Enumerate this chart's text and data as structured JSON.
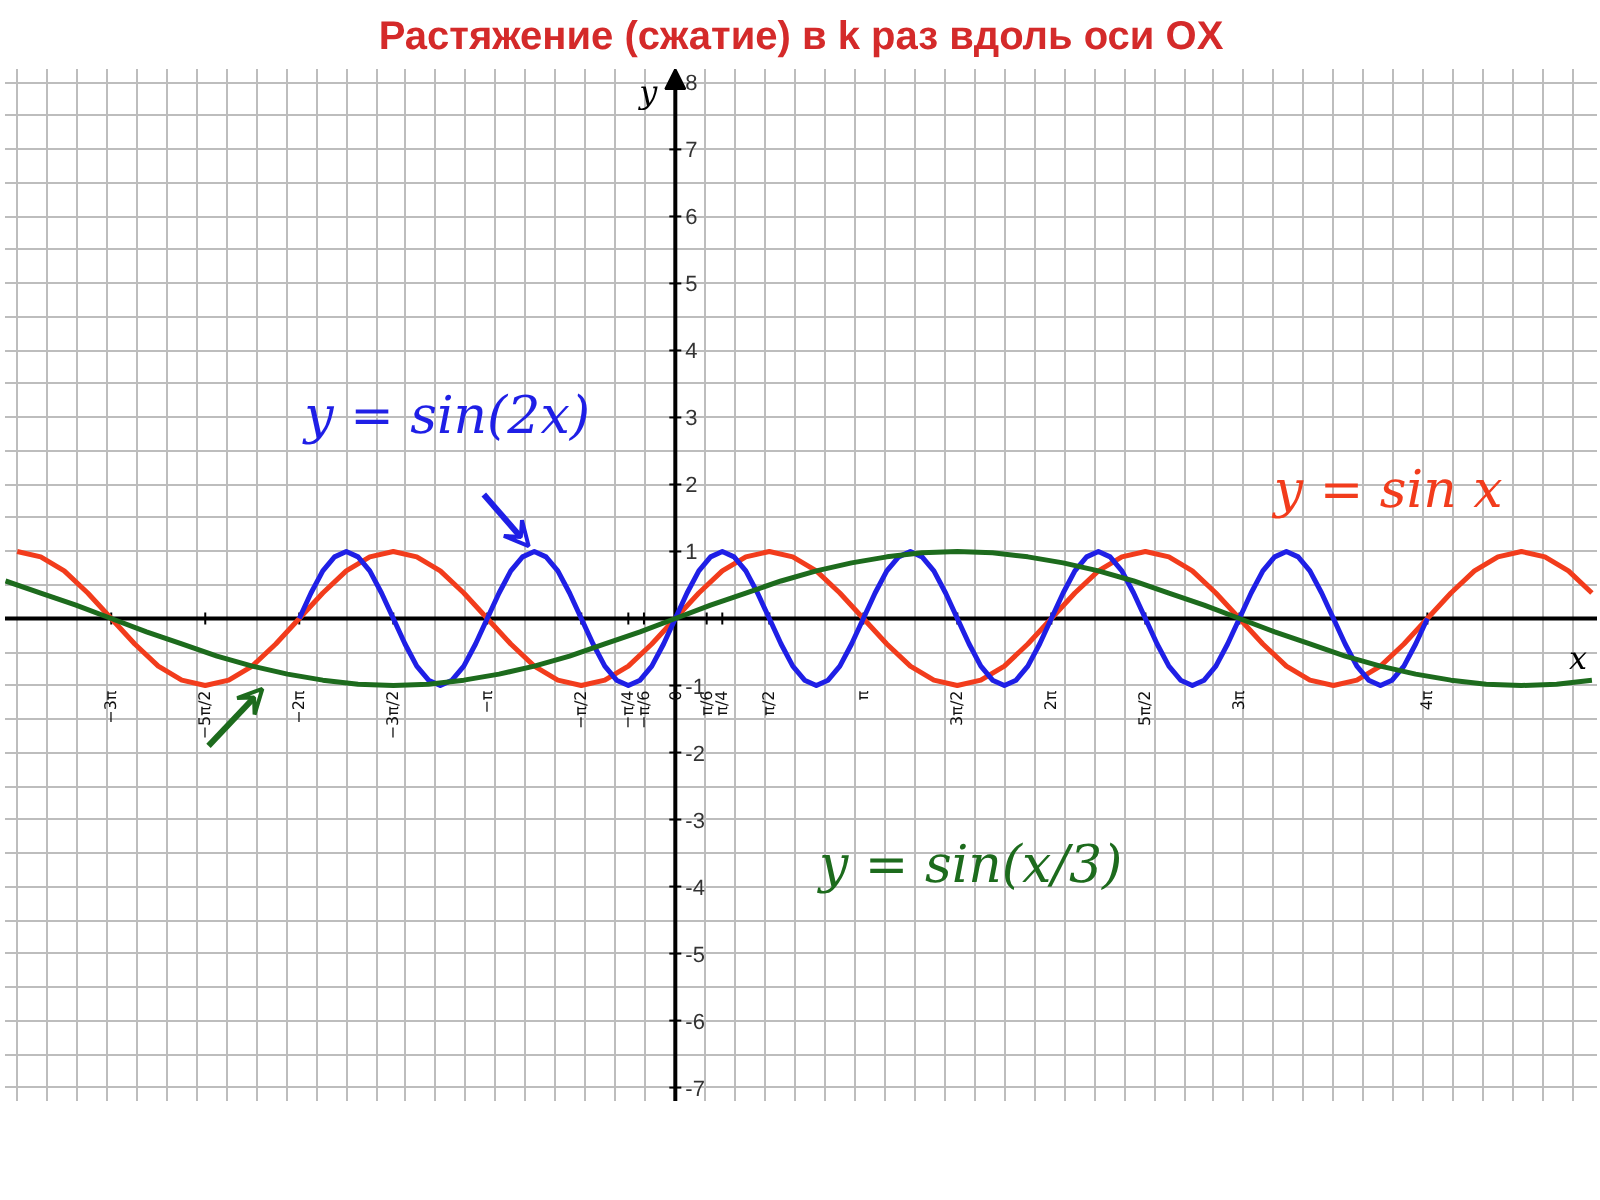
{
  "chart_data": {
    "type": "line",
    "title": "Растяжение (сжатие) в k раз вдоль оси OX",
    "xlabel": "x",
    "ylabel": "y",
    "xlim": [
      -11.2,
      15.4
    ],
    "ylim": [
      -7.2,
      8.2
    ],
    "xticks": [
      {
        "value": -9.425,
        "label": "−3π"
      },
      {
        "value": -7.854,
        "label": "−5π/2"
      },
      {
        "value": -6.283,
        "label": "−2π"
      },
      {
        "value": -4.712,
        "label": "−3π/2"
      },
      {
        "value": -3.142,
        "label": "−π"
      },
      {
        "value": -1.571,
        "label": "−π/2"
      },
      {
        "value": -0.785,
        "label": "−π/4"
      },
      {
        "value": -0.524,
        "label": "−π/6"
      },
      {
        "value": 0,
        "label": "0"
      },
      {
        "value": 0.524,
        "label": "π/6"
      },
      {
        "value": 0.785,
        "label": "π/4"
      },
      {
        "value": 1.571,
        "label": "π/2"
      },
      {
        "value": 3.142,
        "label": "π"
      },
      {
        "value": 4.712,
        "label": "3π/2"
      },
      {
        "value": 6.283,
        "label": "2π"
      },
      {
        "value": 7.854,
        "label": "5π/2"
      },
      {
        "value": 9.425,
        "label": "3π"
      },
      {
        "value": 12.566,
        "label": "4π"
      }
    ],
    "yticks": [
      -7,
      -6,
      -5,
      -4,
      -3,
      -2,
      -1,
      1,
      2,
      3,
      4,
      5,
      6,
      7,
      8
    ],
    "grid": true,
    "line_style": "solid",
    "series": [
      {
        "name": "y = sin x",
        "color": "#f23c1c",
        "x": [
          -10.996,
          -10.603,
          -10.21,
          -9.817,
          -9.425,
          -9.032,
          -8.639,
          -8.247,
          -7.854,
          -7.461,
          -7.069,
          -6.676,
          -6.283,
          -5.89,
          -5.498,
          -5.105,
          -4.712,
          -4.32,
          -3.927,
          -3.534,
          -3.142,
          -2.749,
          -2.356,
          -1.963,
          -1.571,
          -1.178,
          -0.785,
          -0.393,
          0,
          0.393,
          0.785,
          1.178,
          1.571,
          1.963,
          2.356,
          2.749,
          3.142,
          3.534,
          3.927,
          4.32,
          4.712,
          5.105,
          5.498,
          5.89,
          6.283,
          6.676,
          7.069,
          7.461,
          7.854,
          8.247,
          8.639,
          9.032,
          9.425,
          9.817,
          10.21,
          10.603,
          10.996,
          11.388,
          11.781,
          12.174,
          12.566,
          12.959,
          13.352,
          13.744,
          14.137,
          14.53,
          14.923,
          15.315
        ],
        "values": [
          1,
          0.92,
          0.71,
          0.38,
          0,
          -0.38,
          -0.71,
          -0.92,
          -1,
          -0.92,
          -0.71,
          -0.38,
          0,
          0.38,
          0.71,
          0.92,
          1,
          0.92,
          0.71,
          0.38,
          0,
          -0.38,
          -0.71,
          -0.92,
          -1,
          -0.92,
          -0.71,
          -0.38,
          0,
          0.38,
          0.71,
          0.92,
          1,
          0.92,
          0.71,
          0.38,
          0,
          -0.38,
          -0.71,
          -0.92,
          -1,
          -0.92,
          -0.71,
          -0.38,
          0,
          0.38,
          0.71,
          0.92,
          1,
          0.92,
          0.71,
          0.38,
          0,
          -0.38,
          -0.71,
          -0.92,
          -1,
          -0.92,
          -0.71,
          -0.38,
          0,
          0.38,
          0.71,
          0.92,
          1,
          0.92,
          0.71,
          0.38
        ]
      },
      {
        "name": "y = sin(2x)",
        "color": "#1f1fe6",
        "x": [
          -6.283,
          -6.087,
          -5.89,
          -5.694,
          -5.498,
          -5.301,
          -5.105,
          -4.909,
          -4.712,
          -4.516,
          -4.32,
          -4.123,
          -3.927,
          -3.731,
          -3.534,
          -3.338,
          -3.142,
          -2.945,
          -2.749,
          -2.553,
          -2.356,
          -2.16,
          -1.963,
          -1.767,
          -1.571,
          -1.374,
          -1.178,
          -0.982,
          -0.785,
          -0.589,
          -0.393,
          -0.196,
          0,
          0.196,
          0.393,
          0.589,
          0.785,
          0.982,
          1.178,
          1.374,
          1.571,
          1.767,
          1.963,
          2.16,
          2.356,
          2.553,
          2.749,
          2.945,
          3.142,
          3.338,
          3.534,
          3.731,
          3.927,
          4.123,
          4.32,
          4.516,
          4.712,
          4.909,
          5.105,
          5.301,
          5.498,
          5.694,
          5.89,
          6.087,
          6.283,
          6.48,
          6.676,
          6.872,
          7.069,
          7.265,
          7.461,
          7.658,
          7.854,
          8.05,
          8.247,
          8.443,
          8.639,
          8.836,
          9.032,
          9.228,
          9.425,
          9.621,
          9.817,
          10.014,
          10.21,
          10.407,
          10.603,
          10.799,
          10.996,
          11.192,
          11.388,
          11.585,
          11.781,
          11.977,
          12.174,
          12.37,
          12.566
        ],
        "values": [
          0,
          0.38,
          0.71,
          0.92,
          1,
          0.92,
          0.71,
          0.38,
          0,
          -0.38,
          -0.71,
          -0.92,
          -1,
          -0.92,
          -0.71,
          -0.38,
          0,
          0.38,
          0.71,
          0.92,
          1,
          0.92,
          0.71,
          0.38,
          0,
          -0.38,
          -0.71,
          -0.92,
          -1,
          -0.92,
          -0.71,
          -0.38,
          0,
          0.38,
          0.71,
          0.92,
          1,
          0.92,
          0.71,
          0.38,
          0,
          -0.38,
          -0.71,
          -0.92,
          -1,
          -0.92,
          -0.71,
          -0.38,
          0,
          0.38,
          0.71,
          0.92,
          1,
          0.92,
          0.71,
          0.38,
          0,
          -0.38,
          -0.71,
          -0.92,
          -1,
          -0.92,
          -0.71,
          -0.38,
          0,
          0.38,
          0.71,
          0.92,
          1,
          0.92,
          0.71,
          0.38,
          0,
          -0.38,
          -0.71,
          -0.92,
          -1,
          -0.92,
          -0.71,
          -0.38,
          0,
          0.38,
          0.71,
          0.92,
          1,
          0.92,
          0.71,
          0.38,
          0,
          -0.38,
          -0.71,
          -0.92,
          -1,
          -0.92,
          -0.71,
          -0.38,
          0
        ]
      },
      {
        "name": "y = sin(x/3)",
        "color": "#1d6b1d",
        "x": [
          -11.192,
          -10.603,
          -10.014,
          -9.425,
          -8.836,
          -8.247,
          -7.658,
          -7.069,
          -6.48,
          -5.89,
          -5.301,
          -4.712,
          -4.123,
          -3.534,
          -2.945,
          -2.356,
          -1.767,
          -1.178,
          -0.589,
          0,
          0.589,
          1.178,
          1.767,
          2.356,
          2.945,
          3.534,
          4.123,
          4.712,
          5.301,
          5.89,
          6.48,
          7.069,
          7.658,
          8.247,
          8.836,
          9.425,
          10.014,
          10.603,
          11.192,
          11.781,
          12.37,
          12.959,
          13.548,
          14.137,
          14.726,
          15.315
        ],
        "values": [
          0.56,
          0.38,
          0.2,
          0,
          -0.2,
          -0.38,
          -0.56,
          -0.71,
          -0.83,
          -0.92,
          -0.98,
          -1,
          -0.98,
          -0.92,
          -0.83,
          -0.71,
          -0.56,
          -0.38,
          -0.2,
          0,
          0.2,
          0.38,
          0.56,
          0.71,
          0.83,
          0.92,
          0.98,
          1,
          0.98,
          0.92,
          0.83,
          0.71,
          0.56,
          0.38,
          0.2,
          0,
          -0.2,
          -0.38,
          -0.56,
          -0.71,
          -0.83,
          -0.92,
          -0.98,
          -1,
          -0.98,
          -0.92
        ]
      }
    ]
  }
}
